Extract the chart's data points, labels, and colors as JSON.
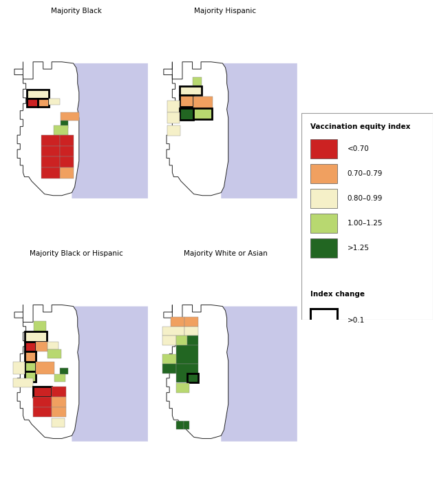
{
  "legend_items": [
    {
      "label": "<0.70",
      "color": "#cc2222"
    },
    {
      "label": "0.70–0.79",
      "color": "#f0a060"
    },
    {
      "label": "0.80–0.99",
      "color": "#f5f0c8"
    },
    {
      "label": "1.00–1.25",
      "color": "#b8d870"
    },
    {
      "label": ">1.25",
      "color": "#226622"
    }
  ],
  "legend_title": "Vaccination equity index",
  "index_change_label": "Index change",
  "index_change_sublabel": ">0.1",
  "titles": [
    "Majority Black",
    "Majority Hispanic",
    "Majority Black or Hispanic",
    "Majority White or Asian"
  ],
  "lake_color": "#c8c8e8",
  "outline_color": "#222222",
  "bg_color": "#ffffff"
}
